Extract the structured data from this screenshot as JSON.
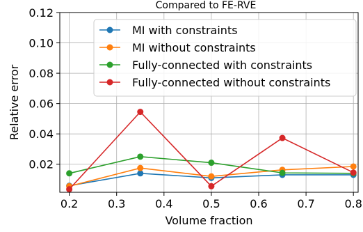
{
  "chart_data": {
    "type": "line",
    "title": "Compared to FE-RVE",
    "xlabel": "Volume fraction",
    "ylabel": "Relative error",
    "x": [
      0.2,
      0.35,
      0.5,
      0.65,
      0.8
    ],
    "xticks": [
      "0.2",
      "0.3",
      "0.4",
      "0.5",
      "0.6",
      "0.7",
      "0.8"
    ],
    "yticks": [
      "0.02",
      "0.04",
      "0.06",
      "0.08",
      "0.10",
      "0.12"
    ],
    "xlim": [
      0.18,
      0.81
    ],
    "ylim": [
      0.0015,
      0.12
    ],
    "grid": true,
    "legend_position": "top-right",
    "series": [
      {
        "name": "MI with constraints",
        "color": "#1f77b4",
        "values": [
          0.0058,
          0.014,
          0.011,
          0.013,
          0.013
        ]
      },
      {
        "name": "MI without constraints",
        "color": "#ff7f0e",
        "values": [
          0.0055,
          0.0175,
          0.012,
          0.0163,
          0.0185
        ]
      },
      {
        "name": "Fully-connected with constraints",
        "color": "#2ca02c",
        "values": [
          0.014,
          0.025,
          0.021,
          0.0143,
          0.014
        ]
      },
      {
        "name": "Fully-connected without constraints",
        "color": "#d62728",
        "values": [
          0.0035,
          0.0545,
          0.0055,
          0.0373,
          0.0145
        ]
      }
    ]
  }
}
